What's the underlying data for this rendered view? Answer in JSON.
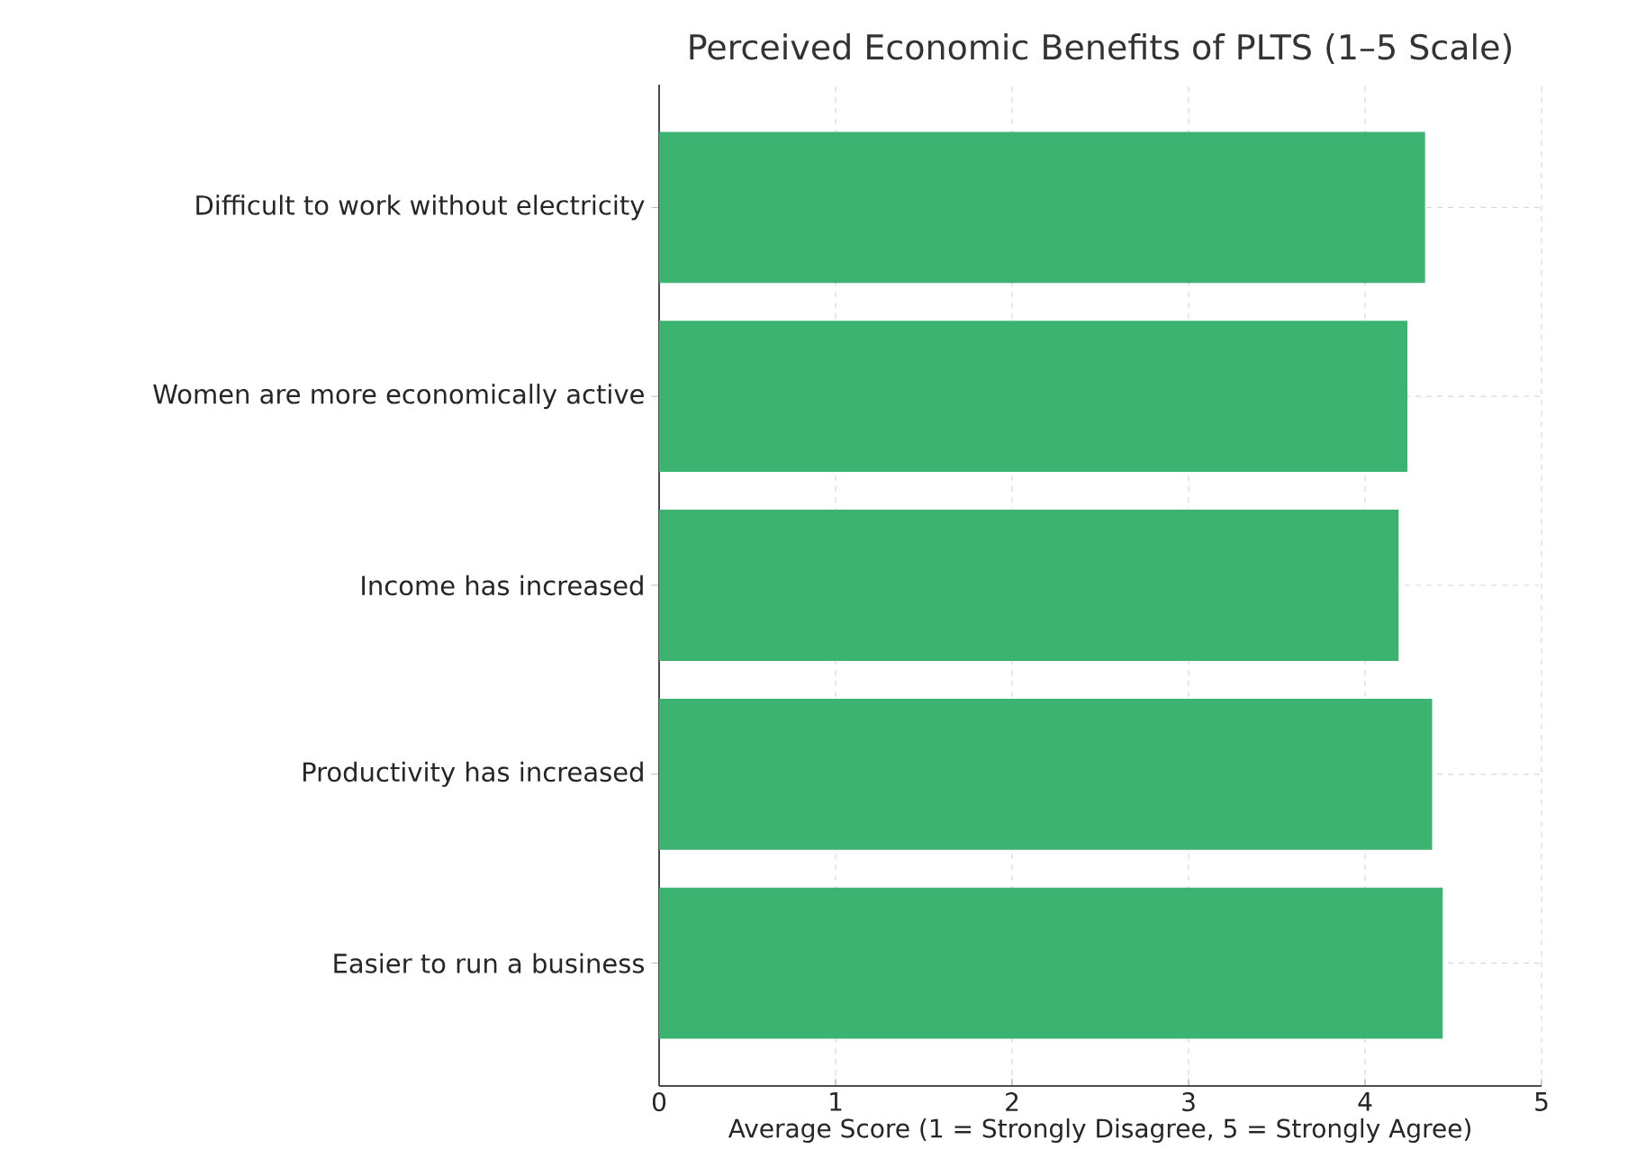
{
  "chart_data": {
    "type": "bar",
    "orientation": "horizontal",
    "title": "Perceived Economic Benefits of PLTS (1–5 Scale)",
    "xlabel": "Average Score (1 = Strongly Disagree, 5 = Strongly Agree)",
    "categories": [
      "Difficult to work without electricity",
      "Women are more economically active",
      "Income has increased",
      "Productivity has increased",
      "Easier to run a business"
    ],
    "values": [
      4.34,
      4.24,
      4.19,
      4.38,
      4.44
    ],
    "color": "#3cb371",
    "xlim": [
      0,
      5
    ],
    "xticks": [
      0,
      1,
      2,
      3,
      4,
      5
    ],
    "grid": true,
    "line_style": "dashed"
  }
}
